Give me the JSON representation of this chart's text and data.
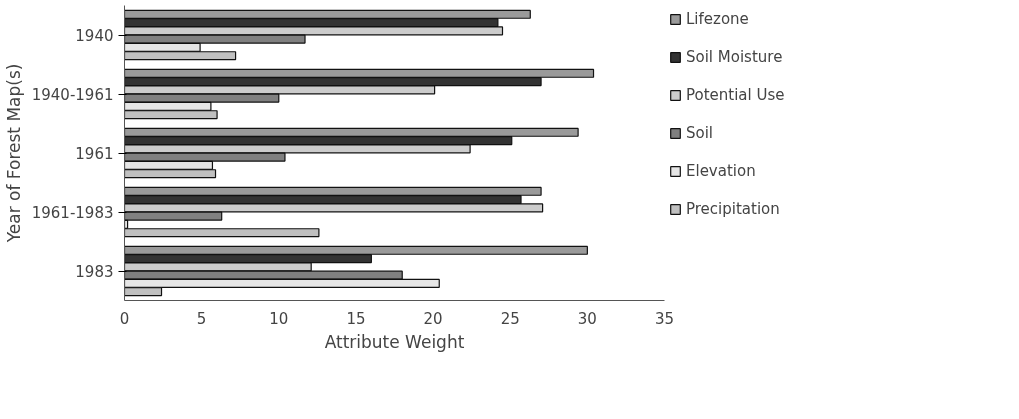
{
  "chart_data": {
    "type": "bar",
    "orientation": "horizontal",
    "xlabel": "Attribute Weight",
    "ylabel": "Year of Forest Map(s)",
    "categories": [
      "1940",
      "1940-1961",
      "1961",
      "1961-1983",
      "1983"
    ],
    "series": [
      {
        "name": "Lifezone",
        "color": "#9a9a9a",
        "values": [
          26.3,
          30.4,
          29.4,
          27.0,
          30.0
        ]
      },
      {
        "name": "Soil Moisture",
        "color": "#333333",
        "values": [
          24.2,
          27.0,
          25.1,
          25.7,
          16.0
        ]
      },
      {
        "name": "Potential Use",
        "color": "#cccccc",
        "values": [
          24.5,
          20.1,
          22.4,
          27.1,
          12.1
        ]
      },
      {
        "name": "Soil",
        "color": "#808080",
        "values": [
          11.7,
          10.0,
          10.4,
          6.3,
          18.0
        ]
      },
      {
        "name": "Elevation",
        "color": "#e6e6e6",
        "values": [
          4.9,
          5.6,
          5.7,
          0.2,
          20.4
        ]
      },
      {
        "name": "Precipitation",
        "color": "#c0c0c0",
        "values": [
          7.2,
          6.0,
          5.9,
          12.6,
          2.4
        ]
      }
    ],
    "xlim": [
      0,
      35
    ],
    "xticks": [
      0,
      5,
      10,
      15,
      20,
      25,
      30,
      35
    ],
    "grid": false,
    "legend": "right"
  }
}
